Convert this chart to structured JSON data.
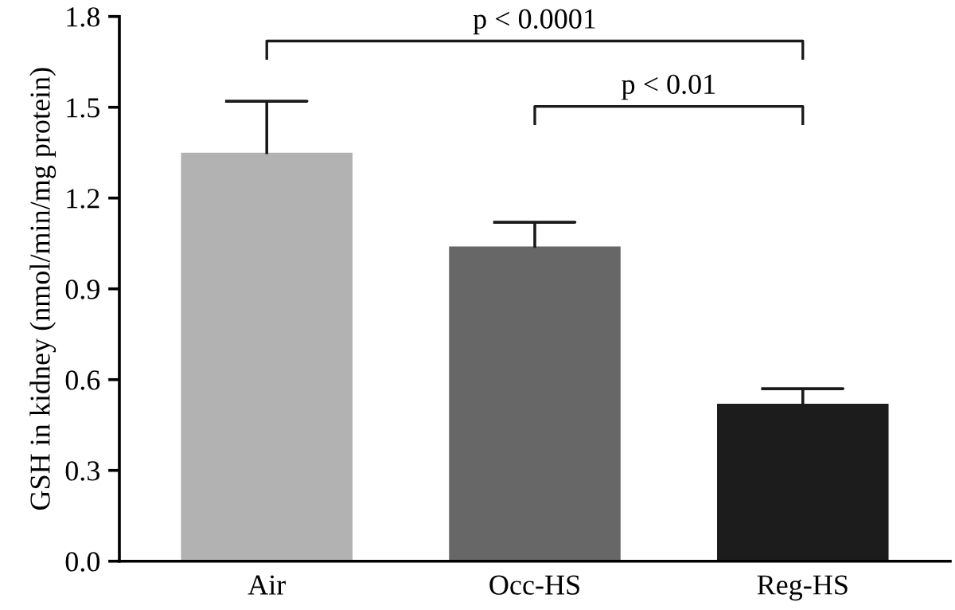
{
  "chart_data": {
    "type": "bar",
    "ylabel": "GSH in kidney (nmol/min/mg protein)",
    "categories": [
      "Air",
      "Occ-HS",
      "Reg-HS"
    ],
    "values": [
      1.35,
      1.04,
      0.52
    ],
    "colors": [
      "#b2b2b2",
      "#676767",
      "#1c1c1c"
    ],
    "errors": [
      [
        1.35,
        1.52
      ],
      [
        1.04,
        1.12
      ],
      [
        0.52,
        0.57
      ]
    ],
    "ylim": [
      0,
      1.8
    ],
    "yticks": [
      {
        "value": 0,
        "label": "0.0"
      },
      0.3,
      0.6,
      0.9,
      1.2,
      1.5,
      1.8
    ],
    "annotations": [
      "p < 0.0001",
      "p < 0.01"
    ],
    "grid": false
  }
}
